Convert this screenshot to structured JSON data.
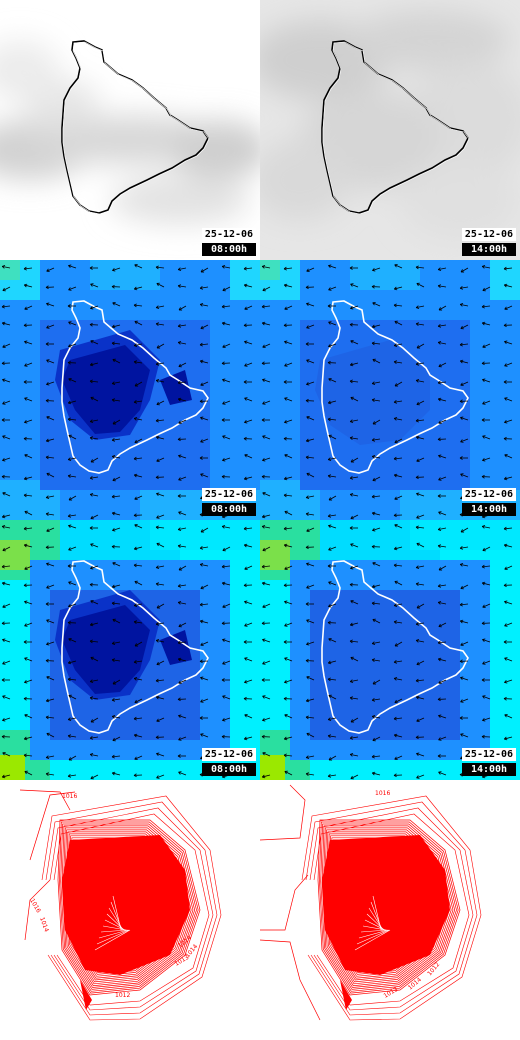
{
  "timestamps": {
    "t1": {
      "date": "25-12-06",
      "time": "08:00h"
    },
    "t2": {
      "date": "25-12-06",
      "time": "14:00h"
    }
  },
  "rows": [
    {
      "name": "cloud-cover",
      "style": "greyscale",
      "stamped": true
    },
    {
      "name": "wind-speed-level-1",
      "style": "blue-scale-with-wind-arrows",
      "stamped": true
    },
    {
      "name": "wind-speed-level-2",
      "style": "blue-green-scale-with-wind-arrows",
      "stamped": true
    },
    {
      "name": "pressure-isobars",
      "style": "red-contours",
      "stamped": false
    }
  ],
  "isobar_labels": {
    "left": [
      "1016",
      "1016",
      "1014",
      "1014",
      "1013",
      "1012",
      "1014"
    ],
    "right": [
      "1016",
      "1013",
      "1014",
      "1012"
    ]
  },
  "colors": {
    "island_outline_light": "#ffffff",
    "island_outline_dark": "#000000",
    "isobar": "#ff0000",
    "wind_scale": [
      "#00eaff",
      "#0fc8ff",
      "#1e90ff",
      "#1e64e6",
      "#0a32c8",
      "#0014a0"
    ]
  }
}
